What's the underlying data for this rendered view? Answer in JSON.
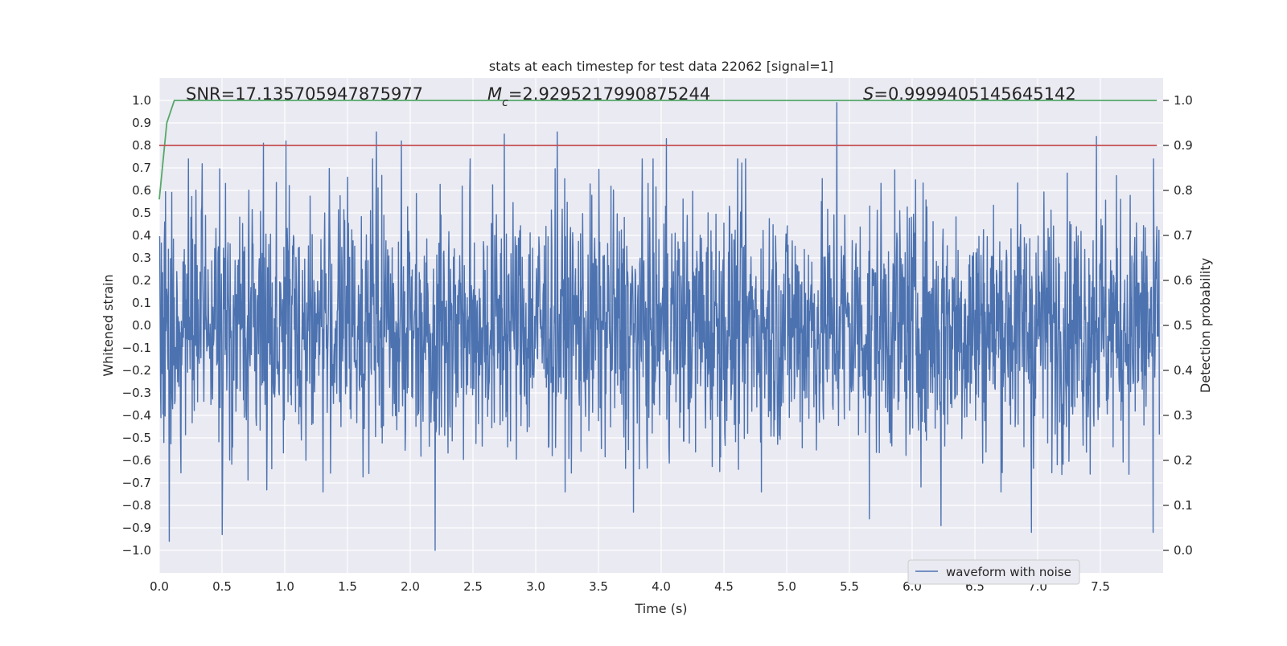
{
  "chart_data": {
    "type": "line",
    "title": "stats at each timestep for test data 22062 [signal=1]",
    "xlabel": "Time (s)",
    "ylabel": "Whitened strain",
    "y2label": "Detection probability",
    "xlim": [
      0.0,
      8.0
    ],
    "ylim": [
      -1.1,
      1.1
    ],
    "y2lim": [
      -0.05,
      1.05
    ],
    "xticks": [
      0.0,
      0.5,
      1.0,
      1.5,
      2.0,
      2.5,
      3.0,
      3.5,
      4.0,
      4.5,
      5.0,
      5.5,
      6.0,
      6.5,
      7.0,
      7.5
    ],
    "xtick_labels": [
      "0.0",
      "0.5",
      "1.0",
      "1.5",
      "2.0",
      "2.5",
      "3.0",
      "3.5",
      "4.0",
      "4.5",
      "5.0",
      "5.5",
      "6.0",
      "6.5",
      "7.0",
      "7.5"
    ],
    "yticks": [
      1.0,
      0.9,
      0.8,
      0.7,
      0.6,
      0.5,
      0.4,
      0.3,
      0.2,
      0.1,
      0.0,
      -0.1,
      -0.2,
      -0.3,
      -0.4,
      -0.5,
      -0.6,
      -0.7,
      -0.8,
      -0.9,
      -1.0
    ],
    "ytick_labels": [
      "1.0",
      "0.9",
      "0.8",
      "0.7",
      "0.6",
      "0.5",
      "0.4",
      "0.3",
      "0.2",
      "0.1",
      "0.0",
      "−0.1",
      "−0.2",
      "−0.3",
      "−0.4",
      "−0.5",
      "−0.6",
      "−0.7",
      "−0.8",
      "−0.9",
      "−1.0"
    ],
    "y2ticks": [
      1.0,
      0.9,
      0.8,
      0.7,
      0.6,
      0.5,
      0.4,
      0.3,
      0.2,
      0.1,
      0.0
    ],
    "y2tick_labels": [
      "1.0",
      "0.9",
      "0.8",
      "0.7",
      "0.6",
      "0.5",
      "0.4",
      "0.3",
      "0.2",
      "0.1",
      "0.0"
    ],
    "annotations": {
      "snr": "SNR=17.135705947875977",
      "mc": "=2.9295217990875244",
      "mc_symbol": "M",
      "mc_sub": "c",
      "s": "=0.9999405145645142",
      "s_symbol": "S"
    },
    "legend": {
      "label": "waveform with noise",
      "position": "lower-right"
    },
    "grid": true,
    "series": [
      {
        "name": "waveform with noise",
        "axis": "left",
        "color": "#4c72b0",
        "style": "dense-noise",
        "duration": 7.97,
        "typical_amplitude": 0.45,
        "peaks": [
          {
            "x": 0.08,
            "y": -0.96
          },
          {
            "x": 0.5,
            "y": -0.93
          },
          {
            "x": 0.83,
            "y": 0.81
          },
          {
            "x": 1.01,
            "y": 0.82
          },
          {
            "x": 1.73,
            "y": 0.86
          },
          {
            "x": 1.93,
            "y": 0.82
          },
          {
            "x": 2.2,
            "y": -1.0
          },
          {
            "x": 2.75,
            "y": 0.85
          },
          {
            "x": 3.17,
            "y": 0.86
          },
          {
            "x": 3.78,
            "y": -0.83
          },
          {
            "x": 4.04,
            "y": 0.83
          },
          {
            "x": 5.4,
            "y": 0.99
          },
          {
            "x": 5.66,
            "y": -0.86
          },
          {
            "x": 6.23,
            "y": -0.89
          },
          {
            "x": 6.47,
            "y": -0.2
          },
          {
            "x": 6.95,
            "y": -0.92
          },
          {
            "x": 7.47,
            "y": 0.84
          },
          {
            "x": 7.92,
            "y": -0.92
          }
        ]
      },
      {
        "name": "detection probability",
        "axis": "right",
        "color": "#55a868",
        "x": [
          0.0,
          0.06,
          0.12,
          7.95
        ],
        "values": [
          0.78,
          0.95,
          1.0,
          1.0
        ]
      },
      {
        "name": "threshold",
        "axis": "right",
        "color": "#c44e52",
        "x": [
          0.0,
          7.95
        ],
        "values": [
          0.9,
          0.9
        ]
      }
    ],
    "colors": {
      "plot_bg": "#eaeaf2",
      "grid": "#ffffff",
      "text": "#262626"
    }
  }
}
